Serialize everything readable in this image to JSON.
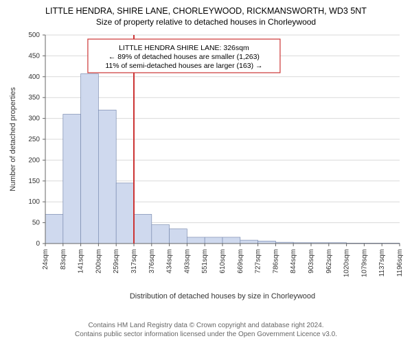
{
  "title": "LITTLE HENDRA, SHIRE LANE, CHORLEYWOOD, RICKMANSWORTH, WD3 5NT",
  "subtitle": "Size of property relative to detached houses in Chorleywood",
  "ylabel": "Number of detached properties",
  "xlabel": "Distribution of detached houses by size in Chorleywood",
  "footer_line1": "Contains HM Land Registry data © Crown copyright and database right 2024.",
  "footer_line2": "Contains public sector information licensed under the Open Government Licence v3.0.",
  "annotation": {
    "line1": "LITTLE HENDRA SHIRE LANE: 326sqm",
    "line2": "← 89% of detached houses are smaller (1,263)",
    "line3": "11% of semi-detached houses are larger (163) →",
    "border_color": "#cc3333",
    "bg_color": "#ffffff",
    "text_color": "#000000",
    "font_size": 10.5
  },
  "chart": {
    "type": "histogram",
    "background_color": "#ffffff",
    "bar_fill": "#cfd9ee",
    "bar_stroke": "#7a8bb0",
    "grid_color": "#d9d9d9",
    "axis_color": "#666666",
    "marker_line_color": "#cc3333",
    "marker_line_width": 2,
    "ylim": [
      0,
      500
    ],
    "ytick_step": 50,
    "x_tick_labels": [
      "24sqm",
      "83sqm",
      "141sqm",
      "200sqm",
      "259sqm",
      "317sqm",
      "376sqm",
      "434sqm",
      "493sqm",
      "551sqm",
      "610sqm",
      "669sqm",
      "727sqm",
      "786sqm",
      "844sqm",
      "903sqm",
      "962sqm",
      "1020sqm",
      "1079sqm",
      "1137sqm",
      "1196sqm"
    ],
    "bin_values": [
      70,
      310,
      407,
      320,
      145,
      70,
      45,
      35,
      15,
      15,
      15,
      8,
      6,
      3,
      2,
      2,
      2,
      1,
      1,
      1
    ],
    "marker_bin_index": 5,
    "label_fontsize": 11,
    "tick_fontsize": 10
  }
}
